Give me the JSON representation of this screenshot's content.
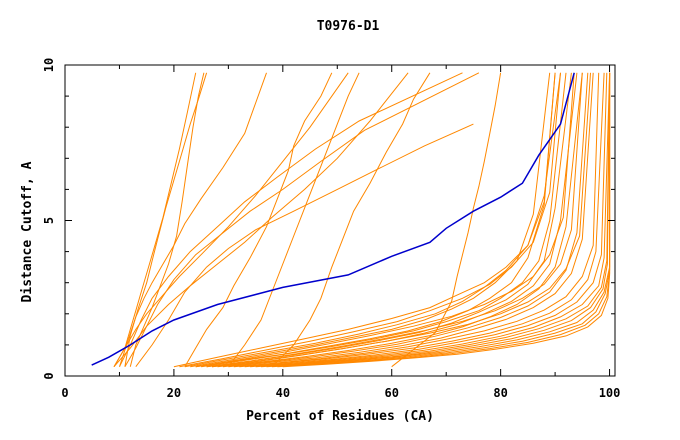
{
  "chart_data": {
    "type": "line",
    "title": "T0976-D1",
    "xlabel": "Percent of Residues (CA)",
    "ylabel": "Distance Cutoff, A",
    "xlim": [
      0,
      101
    ],
    "ylim": [
      0,
      10
    ],
    "xticks": [
      "0",
      "20",
      "40",
      "60",
      "80",
      "100"
    ],
    "yticks": [
      "0",
      "5",
      "10"
    ],
    "grid": false,
    "legend": "none",
    "colors": {
      "highlight": "#0000cc",
      "other": "#ff8800",
      "axis": "#000000"
    },
    "highlight": {
      "x": [
        4.9,
        8,
        12,
        16,
        20,
        28,
        40,
        52,
        60,
        67,
        70,
        75,
        80,
        84,
        87,
        91,
        93.5
      ],
      "y": [
        0.35,
        0.6,
        1.0,
        1.45,
        1.8,
        2.3,
        2.85,
        3.25,
        3.85,
        4.3,
        4.75,
        5.3,
        5.75,
        6.2,
        7.1,
        8.1,
        9.75
      ]
    },
    "series": [
      {
        "x": [
          12,
          13,
          14.5,
          16,
          17.5,
          19,
          20.5,
          21.5,
          22.5,
          23.5,
          24.5,
          25.5
        ],
        "y": [
          0.3,
          1.0,
          1.6,
          2.2,
          2.9,
          3.6,
          4.5,
          5.6,
          6.8,
          8.0,
          9.0,
          9.75
        ]
      },
      {
        "x": [
          11,
          12,
          13.5,
          15,
          16,
          17,
          18.5,
          20,
          21.5,
          23,
          24.5,
          26
        ],
        "y": [
          0.3,
          1.3,
          2.2,
          3.0,
          3.7,
          4.4,
          5.4,
          6.3,
          7.2,
          8.1,
          8.9,
          9.75
        ]
      },
      {
        "x": [
          10,
          11.5,
          13,
          14.5,
          16,
          18,
          20,
          22,
          25,
          29,
          33,
          37
        ],
        "y": [
          0.3,
          1.1,
          1.9,
          2.5,
          3.0,
          3.6,
          4.2,
          4.9,
          5.7,
          6.7,
          7.8,
          9.75
        ]
      },
      {
        "x": [
          9,
          11,
          13,
          15,
          18,
          21,
          25,
          30,
          35,
          40,
          45,
          52
        ],
        "y": [
          0.3,
          0.9,
          1.5,
          2.0,
          2.6,
          3.2,
          3.9,
          4.8,
          5.8,
          6.9,
          8.0,
          9.75
        ]
      },
      {
        "x": [
          9,
          12,
          15,
          19,
          23,
          28,
          33,
          38,
          44,
          50,
          56,
          63
        ],
        "y": [
          0.3,
          0.9,
          1.6,
          2.3,
          2.9,
          3.6,
          4.3,
          5.1,
          6.0,
          7.0,
          8.2,
          9.75
        ]
      },
      {
        "x": [
          9,
          11,
          12,
          13,
          14,
          15,
          16.5,
          18,
          19.5,
          21,
          22.5,
          24
        ],
        "y": [
          0.3,
          0.9,
          1.5,
          2.1,
          2.7,
          3.3,
          4.2,
          5.1,
          6.2,
          7.3,
          8.5,
          9.75
        ]
      },
      {
        "x": [
          10,
          12,
          14,
          16,
          19,
          23,
          28,
          33,
          39,
          46,
          54,
          73
        ],
        "y": [
          0.3,
          1.0,
          1.8,
          2.5,
          3.2,
          4.0,
          4.8,
          5.6,
          6.4,
          7.3,
          8.2,
          9.75
        ]
      },
      {
        "x": [
          11,
          13,
          15,
          17,
          20,
          24,
          29,
          34,
          40,
          47,
          55,
          76
        ],
        "y": [
          0.3,
          0.9,
          1.6,
          2.3,
          3.1,
          3.9,
          4.6,
          5.3,
          6.0,
          6.9,
          7.9,
          9.75
        ]
      },
      {
        "x": [
          13,
          16,
          19,
          22,
          26,
          30,
          35,
          42,
          50,
          58,
          66,
          75
        ],
        "y": [
          0.3,
          1.0,
          1.8,
          2.7,
          3.5,
          4.1,
          4.7,
          5.3,
          6.0,
          6.7,
          7.4,
          8.1
        ]
      },
      {
        "x": [
          22,
          24,
          26,
          29,
          31,
          34,
          37,
          39,
          41,
          42,
          44,
          47,
          49
        ],
        "y": [
          0.3,
          0.9,
          1.5,
          2.2,
          2.9,
          3.8,
          4.8,
          5.7,
          6.6,
          7.4,
          8.2,
          9.0,
          9.75
        ]
      },
      {
        "x": [
          30,
          33,
          36,
          38,
          40,
          42,
          44,
          46,
          48,
          50,
          52,
          54
        ],
        "y": [
          0.3,
          1.0,
          1.8,
          2.7,
          3.6,
          4.5,
          5.4,
          6.3,
          7.2,
          8.1,
          9.0,
          9.75
        ]
      },
      {
        "x": [
          38,
          42,
          45,
          47,
          49,
          51,
          53,
          56,
          59,
          62,
          64,
          67
        ],
        "y": [
          0.3,
          1.0,
          1.8,
          2.5,
          3.5,
          4.4,
          5.3,
          6.2,
          7.2,
          8.1,
          8.9,
          9.75
        ]
      },
      {
        "x": [
          60,
          68,
          71,
          72,
          73,
          74,
          75,
          76,
          77,
          78,
          79,
          80
        ],
        "y": [
          0.3,
          1.4,
          2.4,
          3.2,
          3.9,
          4.6,
          5.4,
          6.1,
          6.9,
          7.8,
          8.7,
          9.75
        ]
      },
      {
        "x": [
          23,
          30,
          38,
          46,
          53,
          60,
          66,
          71,
          75,
          79,
          83,
          86,
          89
        ],
        "y": [
          0.3,
          0.5,
          0.75,
          1.0,
          1.25,
          1.5,
          1.8,
          2.15,
          2.5,
          3.0,
          3.7,
          5.2,
          9.75
        ]
      },
      {
        "x": [
          24,
          32,
          40,
          48,
          56,
          63,
          69,
          74,
          78,
          82,
          85,
          88,
          90
        ],
        "y": [
          0.3,
          0.5,
          0.7,
          0.95,
          1.2,
          1.45,
          1.75,
          2.1,
          2.5,
          3.0,
          3.8,
          5.5,
          9.75
        ]
      },
      {
        "x": [
          22,
          30,
          38,
          46,
          54,
          61,
          68,
          73,
          77,
          81,
          85,
          88,
          91
        ],
        "y": [
          0.3,
          0.55,
          0.8,
          1.05,
          1.35,
          1.65,
          2.0,
          2.4,
          2.85,
          3.4,
          4.2,
          5.8,
          9.75
        ]
      },
      {
        "x": [
          25,
          33,
          41,
          49,
          57,
          64,
          70,
          76,
          80,
          84,
          87,
          89,
          92
        ],
        "y": [
          0.3,
          0.5,
          0.72,
          0.95,
          1.2,
          1.45,
          1.75,
          2.1,
          2.5,
          3.0,
          3.7,
          5.0,
          9.75
        ]
      },
      {
        "x": [
          26,
          34,
          42,
          50,
          58,
          65,
          71,
          76,
          81,
          85,
          88,
          90,
          93
        ],
        "y": [
          0.3,
          0.48,
          0.68,
          0.9,
          1.15,
          1.4,
          1.7,
          2.05,
          2.45,
          2.95,
          3.7,
          5.4,
          9.75
        ]
      },
      {
        "x": [
          27,
          35,
          43,
          51,
          59,
          66,
          72,
          77,
          82,
          86,
          89,
          91,
          94
        ],
        "y": [
          0.3,
          0.46,
          0.66,
          0.88,
          1.12,
          1.38,
          1.66,
          2.0,
          2.4,
          2.9,
          3.6,
          5.0,
          9.75
        ]
      },
      {
        "x": [
          20,
          28,
          36,
          44,
          52,
          60,
          67,
          72,
          77,
          81,
          85,
          88,
          90
        ],
        "y": [
          0.3,
          0.6,
          0.9,
          1.2,
          1.5,
          1.85,
          2.2,
          2.6,
          3.0,
          3.5,
          4.2,
          5.6,
          9.75
        ]
      },
      {
        "x": [
          28,
          36,
          44,
          52,
          60,
          67,
          73,
          78,
          83,
          87,
          90,
          92,
          95
        ],
        "y": [
          0.3,
          0.45,
          0.62,
          0.82,
          1.05,
          1.3,
          1.58,
          1.9,
          2.3,
          2.8,
          3.5,
          4.8,
          9.75
        ]
      },
      {
        "x": [
          21,
          29,
          37,
          45,
          53,
          61,
          67,
          73,
          78,
          82,
          86,
          89,
          91
        ],
        "y": [
          0.3,
          0.56,
          0.84,
          1.12,
          1.42,
          1.75,
          2.1,
          2.5,
          2.95,
          3.5,
          4.3,
          5.9,
          9.75
        ]
      },
      {
        "x": [
          29,
          37,
          45,
          53,
          61,
          68,
          74,
          80,
          85,
          89,
          92,
          94,
          96
        ],
        "y": [
          0.3,
          0.45,
          0.6,
          0.8,
          1.02,
          1.28,
          1.55,
          1.88,
          2.25,
          2.7,
          3.4,
          4.6,
          9.75
        ]
      },
      {
        "x": [
          30,
          38,
          46,
          54,
          62,
          69,
          75,
          81,
          86,
          90,
          93,
          95,
          97
        ],
        "y": [
          0.3,
          0.44,
          0.58,
          0.76,
          0.98,
          1.22,
          1.5,
          1.82,
          2.2,
          2.65,
          3.3,
          4.4,
          9.75
        ]
      },
      {
        "x": [
          31,
          39,
          47,
          55,
          63,
          70,
          77,
          83,
          88,
          92,
          95,
          97,
          98
        ],
        "y": [
          0.3,
          0.42,
          0.56,
          0.73,
          0.94,
          1.18,
          1.45,
          1.76,
          2.12,
          2.55,
          3.2,
          4.2,
          9.75
        ]
      },
      {
        "x": [
          32,
          40,
          48,
          56,
          64,
          71,
          78,
          84,
          89,
          93,
          96,
          97.5,
          99
        ],
        "y": [
          0.3,
          0.42,
          0.55,
          0.71,
          0.9,
          1.12,
          1.38,
          1.68,
          2.02,
          2.45,
          3.1,
          4.0,
          9.75
        ]
      },
      {
        "x": [
          33,
          41,
          49,
          57,
          65,
          72,
          79,
          85,
          90,
          94,
          97,
          98.5,
          99.5
        ],
        "y": [
          0.3,
          0.41,
          0.53,
          0.68,
          0.86,
          1.08,
          1.33,
          1.62,
          1.95,
          2.38,
          3.0,
          3.9,
          9.75
        ]
      },
      {
        "x": [
          34,
          42,
          50,
          58,
          66,
          73,
          80,
          86,
          91,
          95,
          98,
          99,
          100
        ],
        "y": [
          0.3,
          0.4,
          0.52,
          0.66,
          0.83,
          1.03,
          1.28,
          1.56,
          1.9,
          2.3,
          2.9,
          3.8,
          9.75
        ]
      },
      {
        "x": [
          35,
          43,
          51,
          59,
          67,
          74,
          81,
          87,
          92,
          96,
          98.5,
          99.5,
          100
        ],
        "y": [
          0.3,
          0.4,
          0.51,
          0.64,
          0.8,
          1.0,
          1.24,
          1.52,
          1.84,
          2.25,
          2.85,
          3.7,
          9.75
        ]
      },
      {
        "x": [
          36,
          44,
          52,
          60,
          68,
          75,
          82,
          88,
          93,
          96.5,
          98.8,
          99.6,
          100
        ],
        "y": [
          0.3,
          0.4,
          0.5,
          0.62,
          0.78,
          0.97,
          1.2,
          1.47,
          1.78,
          2.2,
          2.8,
          3.6,
          9.75
        ]
      },
      {
        "x": [
          24,
          32,
          40,
          48,
          56,
          64,
          71,
          77,
          82,
          86,
          89,
          91.5,
          93.5
        ],
        "y": [
          0.3,
          0.52,
          0.76,
          1.02,
          1.3,
          1.6,
          1.92,
          2.3,
          2.72,
          3.2,
          3.9,
          5.1,
          9.75
        ]
      },
      {
        "x": [
          37,
          45,
          53,
          61,
          69,
          76,
          83,
          89,
          94,
          97,
          99,
          100,
          100
        ],
        "y": [
          0.3,
          0.4,
          0.5,
          0.62,
          0.76,
          0.94,
          1.16,
          1.42,
          1.72,
          2.12,
          2.7,
          3.5,
          9.75
        ]
      },
      {
        "x": [
          38,
          46,
          54,
          62,
          70,
          77,
          84,
          90,
          95,
          97.5,
          99.2,
          100,
          100
        ],
        "y": [
          0.3,
          0.39,
          0.49,
          0.6,
          0.74,
          0.91,
          1.12,
          1.38,
          1.68,
          2.06,
          2.65,
          3.4,
          9.75
        ]
      },
      {
        "x": [
          26,
          34,
          42,
          50,
          58,
          66,
          73,
          79,
          84,
          88,
          91,
          93,
          95
        ],
        "y": [
          0.3,
          0.48,
          0.7,
          0.93,
          1.18,
          1.46,
          1.76,
          2.1,
          2.5,
          2.95,
          3.6,
          4.7,
          9.75
        ]
      },
      {
        "x": [
          39,
          47,
          55,
          63,
          71,
          78,
          85,
          91,
          95.5,
          98,
          99.5,
          100,
          100
        ],
        "y": [
          0.3,
          0.39,
          0.48,
          0.59,
          0.72,
          0.88,
          1.08,
          1.33,
          1.63,
          2.0,
          2.55,
          3.3,
          9.75
        ]
      },
      {
        "x": [
          27,
          35,
          43,
          51,
          59,
          67,
          74,
          80,
          85,
          89,
          92,
          94.5,
          96.5
        ],
        "y": [
          0.3,
          0.47,
          0.67,
          0.88,
          1.12,
          1.38,
          1.66,
          2.0,
          2.38,
          2.82,
          3.45,
          4.5,
          9.75
        ]
      },
      {
        "x": [
          40,
          48,
          56,
          64,
          72,
          79,
          86,
          92,
          96,
          98.5,
          99.7,
          100,
          100
        ],
        "y": [
          0.3,
          0.38,
          0.47,
          0.58,
          0.7,
          0.86,
          1.05,
          1.29,
          1.58,
          1.95,
          2.5,
          3.25,
          9.75
        ]
      }
    ]
  }
}
